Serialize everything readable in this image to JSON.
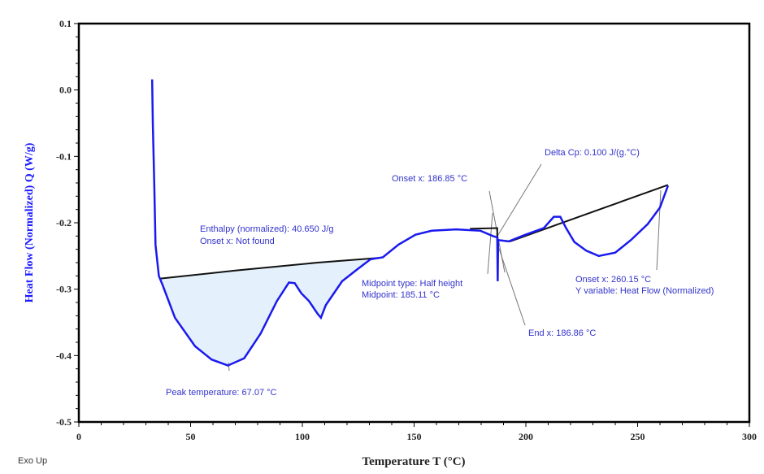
{
  "chart_data": {
    "type": "line",
    "title": "",
    "xlabel": "Temperature T (°C)",
    "ylabel": "Heat Flow (Normalized) Q (W/g)",
    "xlim": [
      0,
      300
    ],
    "ylim": [
      -0.5,
      0.1
    ],
    "xticks": [
      "0",
      "50",
      "100",
      "150",
      "200",
      "250",
      "300"
    ],
    "yticks": [
      "0.1",
      "0.0",
      "-0.1",
      "-0.2",
      "-0.3",
      "-0.4",
      "-0.5"
    ],
    "footer": "Exo Up",
    "grid": false,
    "colors": {
      "curve": "#1a1aee",
      "baseline": "#111111",
      "fill": "#e4f0fb",
      "tangent": "#777777"
    },
    "series": [
      {
        "name": "Heat Flow",
        "x": [
          32.8,
          33.1,
          33.8,
          34.3,
          35.8,
          37.5,
          43,
          52,
          59.4,
          66.7,
          74,
          81.3,
          88.6,
          94,
          96.6,
          99.5,
          103,
          106.8,
          108.3,
          110.5,
          117.8,
          125,
          130.5,
          136,
          143,
          150.6,
          157.9,
          168.8,
          179.7,
          185.2,
          187.2,
          187.4,
          187.6,
          192.3,
          199.8,
          208,
          212.5,
          215.4,
          218,
          221.7,
          227,
          232.6,
          240,
          247,
          254.5,
          260,
          263.6
        ],
        "y": [
          0.016,
          -0.05,
          -0.15,
          -0.233,
          -0.28,
          -0.294,
          -0.343,
          -0.386,
          -0.406,
          -0.415,
          -0.404,
          -0.367,
          -0.318,
          -0.29,
          -0.291,
          -0.306,
          -0.318,
          -0.337,
          -0.343,
          -0.324,
          -0.288,
          -0.269,
          -0.255,
          -0.252,
          -0.233,
          -0.218,
          -0.212,
          -0.21,
          -0.212,
          -0.22,
          -0.222,
          -0.288,
          -0.226,
          -0.228,
          -0.218,
          -0.208,
          -0.191,
          -0.191,
          -0.208,
          -0.229,
          -0.242,
          -0.25,
          -0.245,
          -0.226,
          -0.202,
          -0.177,
          -0.144
        ]
      }
    ],
    "baselines": [
      {
        "x": [
          36.5,
          70,
          106.8,
          134
        ],
        "y": [
          -0.284,
          -0.272,
          -0.26,
          -0.253
        ]
      },
      {
        "x": [
          175,
          187.2,
          187.2,
          193,
          263.6
        ],
        "y": [
          -0.209,
          -0.208,
          -0.226,
          -0.228,
          -0.143
        ]
      }
    ],
    "annotations": [
      {
        "lines": [
          "Enthalpy (normalized): 40.650 J/g",
          "Onset x: Not found"
        ]
      },
      {
        "lines": [
          "Peak temperature: 67.07 °C"
        ]
      },
      {
        "lines": [
          "Midpoint type: Half height",
          "Midpoint: 185.11 °C"
        ]
      },
      {
        "lines": [
          "Onset x: 186.85 °C"
        ]
      },
      {
        "lines": [
          "Delta Cp: 0.100 J/(g.°C)"
        ]
      },
      {
        "lines": [
          "End x: 186.86 °C"
        ]
      },
      {
        "lines": [
          "Onset x: 260.15 °C",
          "Y variable: Heat Flow (Normalized)"
        ]
      }
    ]
  }
}
